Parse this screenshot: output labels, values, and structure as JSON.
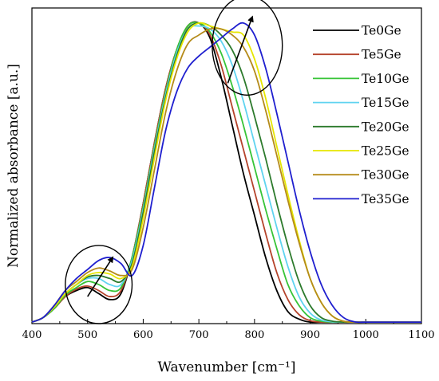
{
  "chart_data": {
    "type": "line",
    "xlabel": "Wavenumber [cm⁻¹]",
    "ylabel": "Normalized absorbance [a.u.]",
    "xlim": [
      400,
      1100
    ],
    "ylim": [
      0,
      1.05
    ],
    "x_ticks": [
      "400",
      "500",
      "600",
      "700",
      "800",
      "900",
      "1000",
      "1100"
    ],
    "y_ticks_shown": false,
    "legend_position": "top-right",
    "annotations": [
      "ellipse with arrow near 520 cm⁻¹",
      "ellipse with arrow near 780 cm⁻¹"
    ],
    "x": [
      400,
      420,
      440,
      460,
      480,
      500,
      520,
      540,
      560,
      580,
      600,
      620,
      640,
      660,
      680,
      700,
      720,
      740,
      760,
      780,
      800,
      820,
      840,
      860,
      880,
      900,
      920,
      940,
      960,
      980,
      1000,
      1020,
      1040,
      1060,
      1080,
      1100
    ],
    "series": [
      {
        "name": "Te0Ge",
        "color": "#000000",
        "values": [
          0.005,
          0.02,
          0.05,
          0.09,
          0.11,
          0.12,
          0.1,
          0.08,
          0.1,
          0.22,
          0.4,
          0.6,
          0.78,
          0.91,
          0.99,
          1.0,
          0.95,
          0.82,
          0.66,
          0.5,
          0.36,
          0.22,
          0.11,
          0.04,
          0.015,
          0.005,
          0.005,
          0.005,
          0.005,
          0.005,
          0.005,
          0.005,
          0.005,
          0.005,
          0.005,
          0.005
        ]
      },
      {
        "name": "Te5Ge",
        "color": "#b5432b",
        "values": [
          0.005,
          0.02,
          0.05,
          0.09,
          0.115,
          0.125,
          0.11,
          0.09,
          0.11,
          0.22,
          0.4,
          0.6,
          0.78,
          0.91,
          0.99,
          1.0,
          0.96,
          0.86,
          0.72,
          0.58,
          0.44,
          0.3,
          0.17,
          0.08,
          0.03,
          0.01,
          0.005,
          0.005,
          0.005,
          0.005,
          0.005,
          0.005,
          0.005,
          0.005,
          0.005,
          0.005
        ]
      },
      {
        "name": "Te10Ge",
        "color": "#37c437",
        "values": [
          0.005,
          0.02,
          0.05,
          0.095,
          0.12,
          0.14,
          0.13,
          0.11,
          0.12,
          0.22,
          0.39,
          0.59,
          0.77,
          0.91,
          0.99,
          1.0,
          0.97,
          0.9,
          0.79,
          0.66,
          0.52,
          0.38,
          0.25,
          0.13,
          0.06,
          0.02,
          0.008,
          0.005,
          0.005,
          0.005,
          0.005,
          0.005,
          0.005,
          0.005,
          0.005,
          0.005
        ]
      },
      {
        "name": "Te15Ge",
        "color": "#5fd3f0",
        "values": [
          0.005,
          0.02,
          0.055,
          0.1,
          0.13,
          0.15,
          0.15,
          0.13,
          0.13,
          0.21,
          0.38,
          0.58,
          0.76,
          0.9,
          0.98,
          0.99,
          0.98,
          0.94,
          0.86,
          0.74,
          0.6,
          0.46,
          0.32,
          0.19,
          0.09,
          0.035,
          0.012,
          0.006,
          0.005,
          0.005,
          0.005,
          0.005,
          0.005,
          0.005,
          0.005,
          0.005
        ]
      },
      {
        "name": "Te20Ge",
        "color": "#2c7a2c",
        "values": [
          0.005,
          0.02,
          0.055,
          0.1,
          0.13,
          0.155,
          0.16,
          0.15,
          0.14,
          0.2,
          0.37,
          0.57,
          0.75,
          0.89,
          0.98,
          1.0,
          0.99,
          0.96,
          0.91,
          0.82,
          0.69,
          0.55,
          0.4,
          0.26,
          0.14,
          0.06,
          0.02,
          0.008,
          0.005,
          0.005,
          0.005,
          0.005,
          0.005,
          0.005,
          0.005,
          0.005
        ]
      },
      {
        "name": "Te25Ge",
        "color": "#e6e600",
        "values": [
          0.005,
          0.02,
          0.055,
          0.1,
          0.13,
          0.16,
          0.17,
          0.165,
          0.15,
          0.19,
          0.35,
          0.55,
          0.74,
          0.88,
          0.97,
          1.0,
          0.99,
          0.98,
          0.97,
          0.96,
          0.88,
          0.75,
          0.59,
          0.43,
          0.28,
          0.15,
          0.07,
          0.025,
          0.008,
          0.005,
          0.005,
          0.005,
          0.005,
          0.005,
          0.005,
          0.005
        ]
      },
      {
        "name": "Te30Ge",
        "color": "#b58b1a",
        "values": [
          0.005,
          0.02,
          0.06,
          0.11,
          0.14,
          0.17,
          0.185,
          0.175,
          0.16,
          0.18,
          0.32,
          0.51,
          0.7,
          0.84,
          0.93,
          0.96,
          0.98,
          0.98,
          0.96,
          0.92,
          0.84,
          0.71,
          0.56,
          0.41,
          0.27,
          0.15,
          0.07,
          0.025,
          0.008,
          0.005,
          0.005,
          0.005,
          0.005,
          0.005,
          0.005,
          0.005
        ]
      },
      {
        "name": "Te35Ge",
        "color": "#1f1fcf",
        "values": [
          0.005,
          0.02,
          0.06,
          0.11,
          0.15,
          0.18,
          0.21,
          0.22,
          0.2,
          0.16,
          0.26,
          0.45,
          0.64,
          0.77,
          0.85,
          0.89,
          0.92,
          0.95,
          0.98,
          1.0,
          0.96,
          0.85,
          0.7,
          0.54,
          0.38,
          0.24,
          0.13,
          0.06,
          0.02,
          0.006,
          0.005,
          0.005,
          0.005,
          0.005,
          0.005,
          0.005
        ]
      }
    ]
  }
}
